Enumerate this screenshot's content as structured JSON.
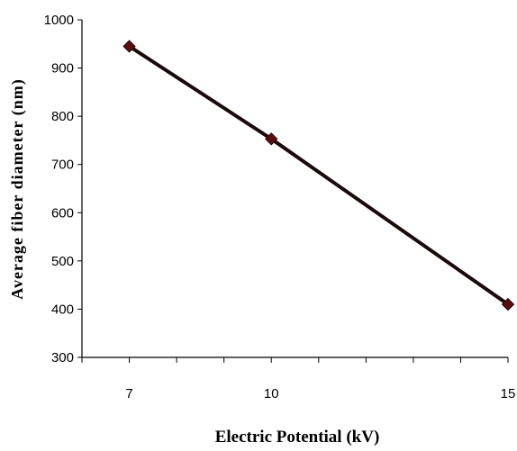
{
  "chart_data": {
    "type": "line",
    "title": "",
    "xlabel": "Electric Potential (kV)",
    "ylabel": "Average fiber diameter  (nm)",
    "xlim": [
      6,
      15
    ],
    "ylim": [
      300,
      1000
    ],
    "x_ticks": [
      7,
      10,
      15
    ],
    "y_ticks": [
      300,
      400,
      500,
      600,
      700,
      800,
      900,
      1000
    ],
    "grid": false,
    "legend": "none",
    "series": [
      {
        "x": [
          7,
          10,
          15
        ],
        "y": [
          945,
          753,
          410
        ],
        "line_color": "#1c0a0a",
        "marker": "diamond",
        "marker_color": "#5a0d0d"
      }
    ]
  }
}
